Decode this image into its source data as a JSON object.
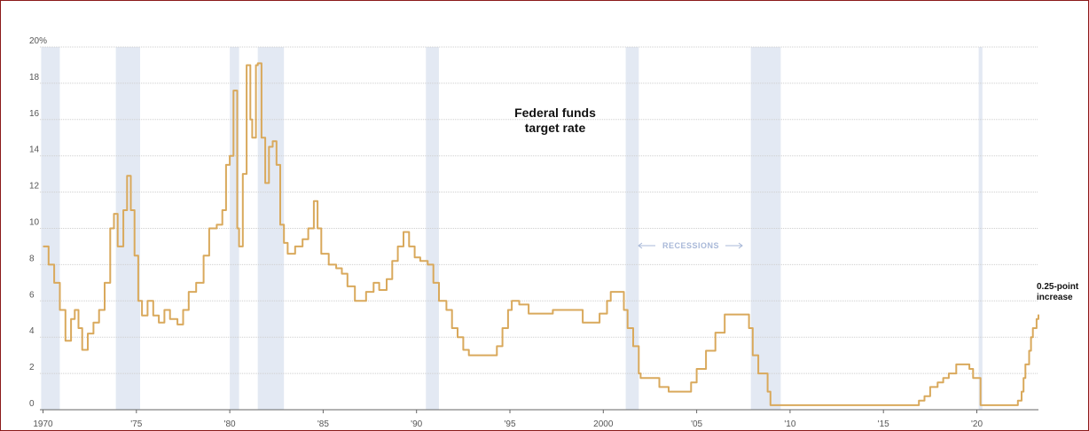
{
  "colors": {
    "line": "#d9a95c",
    "recession": "#e3e9f3",
    "grid": "#cfcfcf",
    "recession_label": "#a8b8d8",
    "frame": "#8b1a1a"
  },
  "chart_data": {
    "type": "line",
    "title": "Federal funds target rate",
    "title_lines": [
      "Federal funds",
      "target rate"
    ],
    "recession_label": "RECESSIONS",
    "end_annotation_lines": [
      "0.25-point",
      "increase"
    ],
    "xlim": [
      1970,
      2023.3
    ],
    "ylim": [
      0,
      20
    ],
    "y_ticks": [
      0,
      2,
      4,
      6,
      8,
      10,
      12,
      14,
      16,
      18,
      20
    ],
    "y_tick_labels": [
      "0",
      "2",
      "4",
      "6",
      "8",
      "10",
      "12",
      "14",
      "16",
      "18",
      "20%"
    ],
    "x_ticks": [
      1970,
      1975,
      1980,
      1985,
      1990,
      1995,
      2000,
      2005,
      2010,
      2015,
      2020
    ],
    "x_tick_labels": [
      "1970",
      "'75",
      "'80",
      "'85",
      "'90",
      "'95",
      "2000",
      "'05",
      "'10",
      "'15",
      "'20"
    ],
    "grid": true,
    "recessions": [
      [
        1969.9,
        1970.9
      ],
      [
        1973.9,
        1975.2
      ],
      [
        1980.0,
        1980.5
      ],
      [
        1981.5,
        1982.9
      ],
      [
        1990.5,
        1991.2
      ],
      [
        2001.2,
        2001.9
      ],
      [
        2007.9,
        2009.5
      ],
      [
        2020.1,
        2020.3
      ]
    ],
    "series": [
      {
        "name": "Federal funds target rate",
        "points": [
          [
            1970.0,
            9.0
          ],
          [
            1970.3,
            8.0
          ],
          [
            1970.6,
            7.0
          ],
          [
            1970.9,
            5.5
          ],
          [
            1971.2,
            3.8
          ],
          [
            1971.5,
            5.0
          ],
          [
            1971.7,
            5.5
          ],
          [
            1971.9,
            4.5
          ],
          [
            1972.1,
            3.3
          ],
          [
            1972.4,
            4.2
          ],
          [
            1972.7,
            4.8
          ],
          [
            1973.0,
            5.5
          ],
          [
            1973.3,
            7.0
          ],
          [
            1973.6,
            10.0
          ],
          [
            1973.8,
            10.8
          ],
          [
            1974.0,
            9.0
          ],
          [
            1974.3,
            11.0
          ],
          [
            1974.5,
            12.9
          ],
          [
            1974.7,
            11.0
          ],
          [
            1974.9,
            8.5
          ],
          [
            1975.1,
            6.0
          ],
          [
            1975.3,
            5.2
          ],
          [
            1975.6,
            6.0
          ],
          [
            1975.9,
            5.2
          ],
          [
            1976.2,
            4.8
          ],
          [
            1976.5,
            5.5
          ],
          [
            1976.8,
            5.0
          ],
          [
            1977.2,
            4.7
          ],
          [
            1977.5,
            5.5
          ],
          [
            1977.8,
            6.5
          ],
          [
            1978.2,
            7.0
          ],
          [
            1978.6,
            8.5
          ],
          [
            1978.9,
            10.0
          ],
          [
            1979.3,
            10.2
          ],
          [
            1979.6,
            11.0
          ],
          [
            1979.8,
            13.5
          ],
          [
            1980.0,
            14.0
          ],
          [
            1980.2,
            17.6
          ],
          [
            1980.4,
            10.0
          ],
          [
            1980.5,
            9.0
          ],
          [
            1980.7,
            13.0
          ],
          [
            1980.9,
            19.0
          ],
          [
            1981.1,
            16.0
          ],
          [
            1981.2,
            15.0
          ],
          [
            1981.4,
            19.0
          ],
          [
            1981.5,
            19.1
          ],
          [
            1981.7,
            15.0
          ],
          [
            1981.9,
            12.5
          ],
          [
            1982.1,
            14.5
          ],
          [
            1982.3,
            14.8
          ],
          [
            1982.5,
            13.5
          ],
          [
            1982.7,
            10.2
          ],
          [
            1982.9,
            9.2
          ],
          [
            1983.1,
            8.6
          ],
          [
            1983.5,
            9.0
          ],
          [
            1983.9,
            9.4
          ],
          [
            1984.2,
            10.0
          ],
          [
            1984.5,
            11.5
          ],
          [
            1984.7,
            10.0
          ],
          [
            1984.9,
            8.6
          ],
          [
            1985.3,
            8.0
          ],
          [
            1985.7,
            7.8
          ],
          [
            1986.0,
            7.5
          ],
          [
            1986.3,
            6.8
          ],
          [
            1986.7,
            6.0
          ],
          [
            1987.0,
            6.0
          ],
          [
            1987.3,
            6.5
          ],
          [
            1987.7,
            7.0
          ],
          [
            1988.0,
            6.6
          ],
          [
            1988.4,
            7.2
          ],
          [
            1988.7,
            8.2
          ],
          [
            1989.0,
            9.0
          ],
          [
            1989.3,
            9.8
          ],
          [
            1989.6,
            9.0
          ],
          [
            1989.9,
            8.4
          ],
          [
            1990.2,
            8.2
          ],
          [
            1990.6,
            8.0
          ],
          [
            1990.9,
            7.0
          ],
          [
            1991.2,
            6.0
          ],
          [
            1991.6,
            5.5
          ],
          [
            1991.9,
            4.5
          ],
          [
            1992.2,
            4.0
          ],
          [
            1992.5,
            3.3
          ],
          [
            1992.8,
            3.0
          ],
          [
            1993.5,
            3.0
          ],
          [
            1994.0,
            3.0
          ],
          [
            1994.3,
            3.5
          ],
          [
            1994.6,
            4.5
          ],
          [
            1994.9,
            5.5
          ],
          [
            1995.1,
            6.0
          ],
          [
            1995.5,
            5.8
          ],
          [
            1996.0,
            5.3
          ],
          [
            1997.0,
            5.3
          ],
          [
            1997.3,
            5.5
          ],
          [
            1998.0,
            5.5
          ],
          [
            1998.6,
            5.5
          ],
          [
            1998.9,
            4.8
          ],
          [
            1999.4,
            4.8
          ],
          [
            1999.8,
            5.3
          ],
          [
            2000.2,
            6.0
          ],
          [
            2000.4,
            6.5
          ],
          [
            2000.9,
            6.5
          ],
          [
            2001.1,
            5.5
          ],
          [
            2001.3,
            4.5
          ],
          [
            2001.6,
            3.5
          ],
          [
            2001.9,
            2.0
          ],
          [
            2002.0,
            1.75
          ],
          [
            2002.8,
            1.75
          ],
          [
            2003.0,
            1.25
          ],
          [
            2003.5,
            1.0
          ],
          [
            2004.4,
            1.0
          ],
          [
            2004.7,
            1.5
          ],
          [
            2005.0,
            2.25
          ],
          [
            2005.5,
            3.25
          ],
          [
            2006.0,
            4.25
          ],
          [
            2006.5,
            5.25
          ],
          [
            2007.6,
            5.25
          ],
          [
            2007.8,
            4.5
          ],
          [
            2008.0,
            3.0
          ],
          [
            2008.3,
            2.0
          ],
          [
            2008.8,
            1.0
          ],
          [
            2008.95,
            0.25
          ],
          [
            2015.9,
            0.25
          ],
          [
            2016.9,
            0.5
          ],
          [
            2017.2,
            0.75
          ],
          [
            2017.5,
            1.25
          ],
          [
            2017.9,
            1.5
          ],
          [
            2018.2,
            1.75
          ],
          [
            2018.5,
            2.0
          ],
          [
            2018.9,
            2.5
          ],
          [
            2019.5,
            2.5
          ],
          [
            2019.6,
            2.25
          ],
          [
            2019.8,
            1.75
          ],
          [
            2020.2,
            0.25
          ],
          [
            2022.2,
            0.5
          ],
          [
            2022.4,
            1.0
          ],
          [
            2022.5,
            1.75
          ],
          [
            2022.6,
            2.5
          ],
          [
            2022.8,
            3.25
          ],
          [
            2022.9,
            4.0
          ],
          [
            2023.0,
            4.5
          ],
          [
            2023.2,
            5.0
          ],
          [
            2023.3,
            5.25
          ]
        ]
      }
    ]
  }
}
